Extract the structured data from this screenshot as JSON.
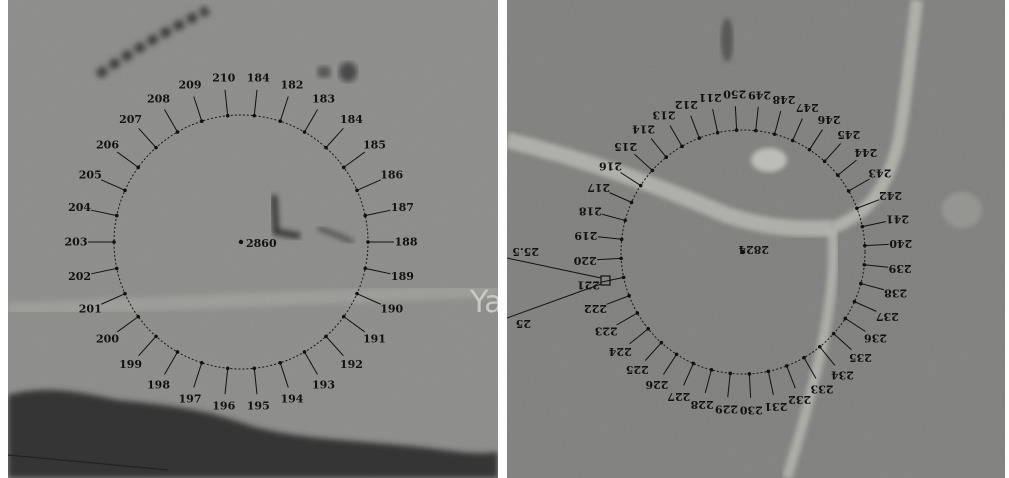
{
  "left_panel": {
    "center_label": "2860",
    "road_text": "Ya",
    "labels": [
      "184",
      "182",
      "183",
      "184",
      "185",
      "186",
      "187",
      "188",
      "189",
      "190",
      "191",
      "192",
      "193",
      "194",
      "195",
      "196",
      "197",
      "198",
      "199",
      "200",
      "201",
      "202",
      "203",
      "204",
      "205",
      "206",
      "207",
      "208",
      "209",
      "210"
    ]
  },
  "right_panel": {
    "center_label": "2824",
    "labels": [
      "250",
      "249",
      "248",
      "247",
      "246",
      "245",
      "244",
      "243",
      "242",
      "241",
      "240",
      "239",
      "238",
      "237",
      "236",
      "235",
      "234",
      "233",
      "232",
      "231",
      "230",
      "229",
      "228",
      "227",
      "226",
      "225",
      "224",
      "223",
      "222",
      "221",
      "220",
      "219",
      "218",
      "217",
      "216",
      "215",
      "214",
      "213",
      "212",
      "211"
    ],
    "edge_labels": [
      "25.5",
      "25"
    ]
  }
}
